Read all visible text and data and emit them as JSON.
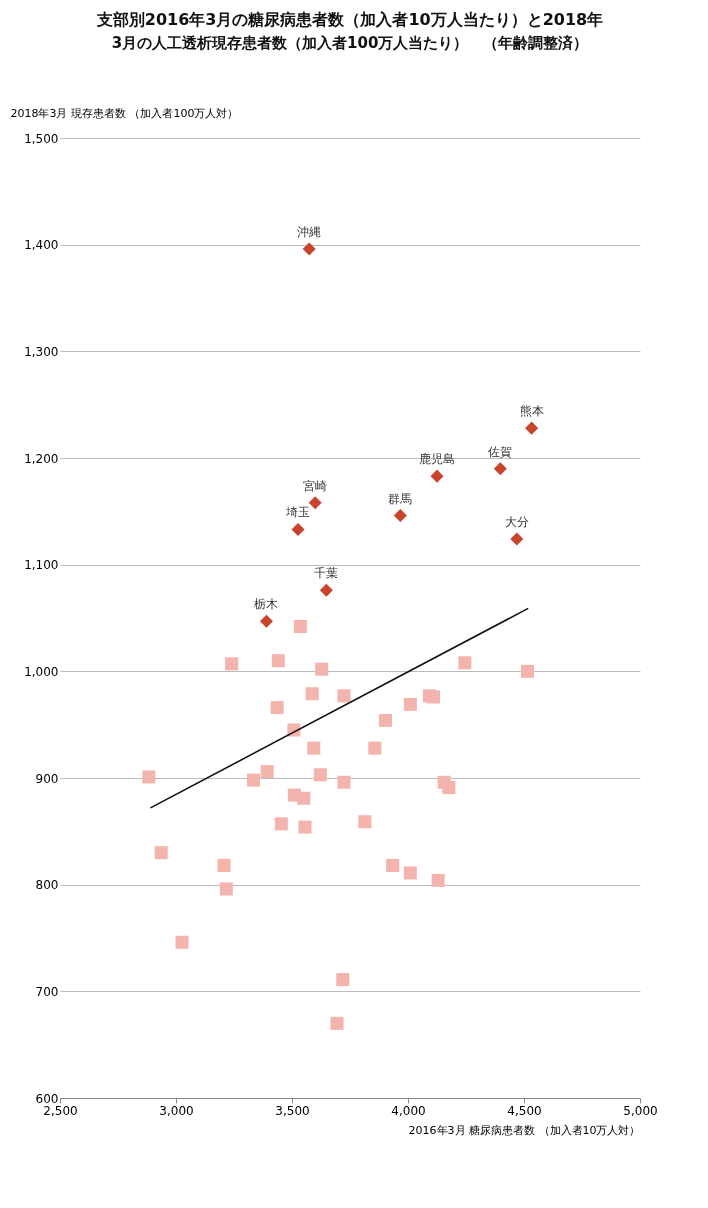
{
  "chart_data": {
    "type": "scatter",
    "title": "支部別2016年3月の糖尿病患者数（加入者10万人当たり）と2018年",
    "subtitle": "3月の人工透析現存患者数（加入者100万人当たり）　（年齢調整済）",
    "xlabel": "2016年3月 糖尿病患者数 （加入者10万人対）",
    "ylabel": "2018年3月 現存患者数 （加入者100万人対）",
    "xlim": [
      2500,
      5000
    ],
    "xticks": [
      {
        "value": 2500,
        "label": "2,500"
      },
      {
        "value": 3000,
        "label": "3,000"
      },
      {
        "value": 3500,
        "label": "3,500"
      },
      {
        "value": 4000,
        "label": "4,000"
      },
      {
        "value": 4500,
        "label": "4,500"
      },
      {
        "value": 5000,
        "label": "5,000"
      }
    ],
    "ylim": [
      600,
      1500
    ],
    "yticks": [
      {
        "value": 600,
        "label": "600"
      },
      {
        "value": 700,
        "label": "700"
      },
      {
        "value": 800,
        "label": "800"
      },
      {
        "value": 900,
        "label": "900"
      },
      {
        "value": 1000,
        "label": "1,000"
      },
      {
        "value": 1100,
        "label": "1,100"
      },
      {
        "value": 1200,
        "label": "1,200"
      },
      {
        "value": 1300,
        "label": "1,300"
      },
      {
        "value": 1400,
        "label": "1,400"
      },
      {
        "value": 1500,
        "label": "1,500"
      }
    ],
    "grid": "y",
    "series": [
      {
        "marker": "diamond",
        "color": "#c8442c",
        "x": [
          4533,
          4398,
          4469,
          4125,
          3967,
          3648,
          3600,
          3574,
          3526,
          3390
        ],
        "values": [
          1228,
          1190,
          1124,
          1183,
          1146,
          1076,
          1158,
          1396,
          1133,
          1047
        ]
      },
      {
        "marker": "square",
        "color": "#f4b4ae",
        "x": [
          4515,
          4245,
          4176,
          4156,
          4130,
          4110,
          4092,
          4010,
          4010,
          3934,
          3903,
          3857,
          3814,
          3724,
          3724,
          3719,
          3694,
          3628,
          3587,
          3594,
          3622,
          3551,
          3556,
          3536,
          3508,
          3510,
          3454,
          3441,
          3436,
          3393,
          3334,
          3240,
          3207,
          3217,
          3026,
          2936,
          2883
        ],
        "values": [
          1000,
          1008,
          891,
          896,
          804,
          976,
          977,
          969,
          811,
          818,
          954,
          928,
          859,
          977,
          896,
          711,
          670,
          1002,
          979,
          928,
          903,
          881,
          854,
          1042,
          945,
          884,
          857,
          1010,
          966,
          906,
          898,
          1007,
          818,
          796,
          746,
          830,
          901
        ]
      },
      {
        "type": "line",
        "marker": "none",
        "line_style": "solid",
        "color": "#111111",
        "x": [
          4518,
          2890
        ],
        "values": [
          1059,
          872
        ]
      }
    ],
    "annotations": [
      {
        "text": "熊本",
        "x": 4533,
        "y": 1228
      },
      {
        "text": "佐賀",
        "x": 4398,
        "y": 1190
      },
      {
        "text": "大分",
        "x": 4469,
        "y": 1124
      },
      {
        "text": "鹿児島",
        "x": 4125,
        "y": 1183
      },
      {
        "text": "群馬",
        "x": 3967,
        "y": 1146
      },
      {
        "text": "千葉",
        "x": 3648,
        "y": 1076
      },
      {
        "text": "宮崎",
        "x": 3600,
        "y": 1158
      },
      {
        "text": "沖縄",
        "x": 3574,
        "y": 1396
      },
      {
        "text": "埼玉",
        "x": 3526,
        "y": 1133
      },
      {
        "text": "栃木",
        "x": 3390,
        "y": 1047
      }
    ]
  }
}
